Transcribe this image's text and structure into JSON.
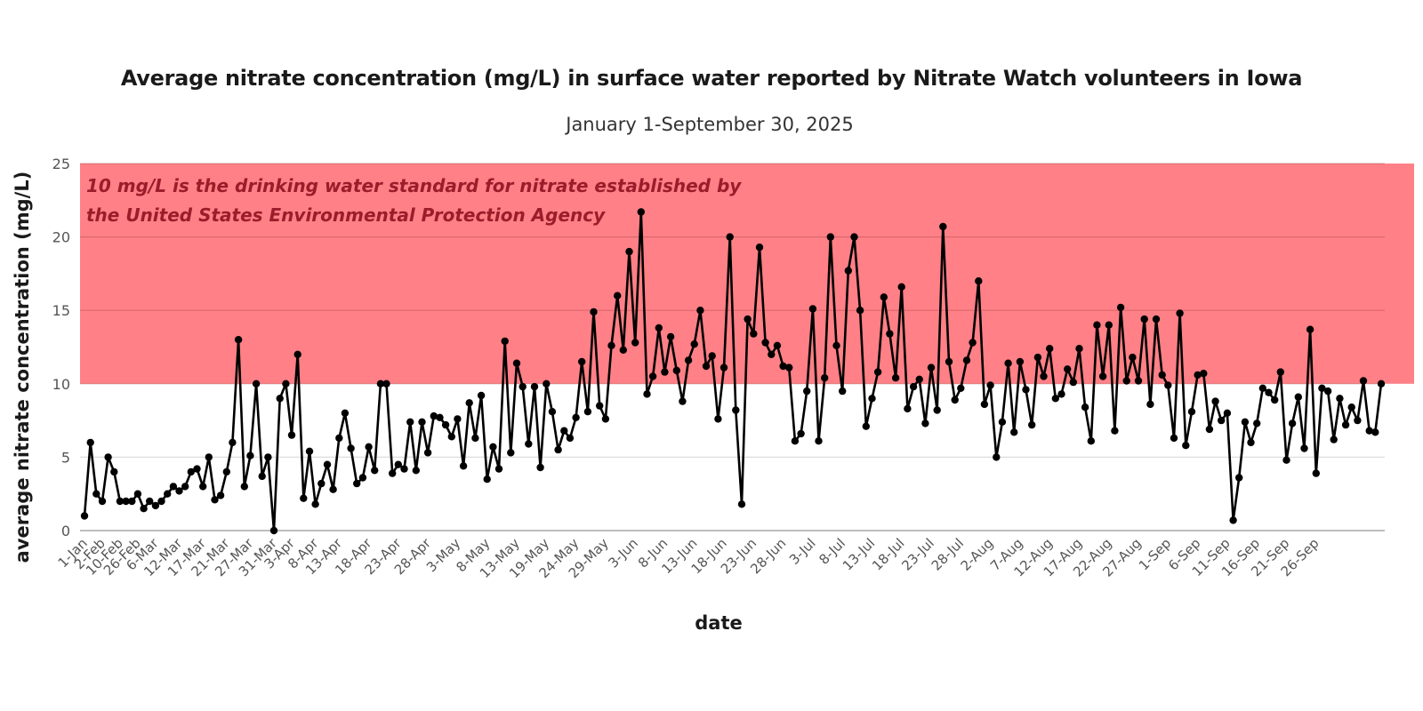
{
  "chart_data": {
    "type": "line",
    "title": "Average nitrate concentration (mg/L) in surface water reported by Nitrate Watch volunteers in Iowa",
    "subtitle": "January 1-September 30, 2025",
    "xlabel": "date",
    "ylabel": "average nitrate concentration (mg/L)",
    "ylim": [
      0,
      25
    ],
    "yticks": [
      0,
      5,
      10,
      15,
      20,
      25
    ],
    "grid": true,
    "legend": "none",
    "threshold_band": {
      "from": 10,
      "to": 25,
      "color": "#ff8086",
      "annotation_lines": [
        "10 mg/L is the drinking water standard for nitrate established by",
        "the United States Environmental Protection Agency"
      ],
      "annotation_color": "#9b1c2a"
    },
    "xtick_labels": [
      "1-Jan",
      "2-Feb",
      "10-Feb",
      "26-Feb",
      "6-Mar",
      "12-Mar",
      "17-Mar",
      "21-Mar",
      "27-Mar",
      "31-Mar",
      "3-Apr",
      "8-Apr",
      "13-Apr",
      "18-Apr",
      "23-Apr",
      "28-Apr",
      "3-May",
      "8-May",
      "13-May",
      "19-May",
      "24-May",
      "29-May",
      "3-Jun",
      "8-Jun",
      "13-Jun",
      "18-Jun",
      "23-Jun",
      "28-Jun",
      "3-Jul",
      "8-Jul",
      "13-Jul",
      "18-Jul",
      "23-Jul",
      "28-Jul",
      "2-Aug",
      "7-Aug",
      "12-Aug",
      "17-Aug",
      "22-Aug",
      "27-Aug",
      "1-Sep",
      "6-Sep",
      "11-Sep",
      "16-Sep",
      "21-Sep",
      "26-Sep"
    ],
    "xtick_positions": [
      0,
      3,
      6,
      9,
      12,
      16,
      20,
      24,
      28,
      32,
      35,
      39,
      43,
      48,
      53,
      58,
      63,
      68,
      73,
      78,
      83,
      88,
      93,
      98,
      103,
      108,
      113,
      118,
      123,
      128,
      133,
      138,
      143,
      148,
      153,
      158,
      163,
      168,
      173,
      178,
      183,
      188,
      193,
      198,
      203,
      208
    ],
    "series": [
      {
        "name": "average nitrate concentration",
        "color": "#000000",
        "values": [
          1.0,
          6.0,
          2.5,
          2.0,
          5.0,
          4.0,
          2.0,
          2.0,
          2.0,
          2.5,
          1.5,
          2.0,
          1.7,
          2.0,
          2.5,
          3.0,
          2.7,
          3.0,
          4.0,
          4.2,
          3.0,
          5.0,
          2.1,
          2.4,
          4.0,
          6.0,
          13.0,
          3.0,
          5.1,
          10.0,
          3.7,
          5.0,
          0.0,
          9.0,
          10.0,
          6.5,
          12.0,
          2.2,
          5.4,
          1.8,
          3.2,
          4.5,
          2.8,
          6.3,
          8.0,
          5.6,
          3.2,
          3.6,
          5.7,
          4.1,
          10.0,
          10.0,
          3.9,
          4.5,
          4.2,
          7.4,
          4.1,
          7.4,
          5.3,
          7.8,
          7.7,
          7.2,
          6.4,
          7.6,
          4.4,
          8.7,
          6.3,
          9.2,
          3.5,
          5.7,
          4.2,
          12.9,
          5.3,
          11.4,
          9.8,
          5.9,
          9.8,
          4.3,
          10.0,
          8.1,
          5.5,
          6.8,
          6.3,
          7.7,
          11.5,
          8.1,
          14.9,
          8.5,
          7.6,
          12.6,
          16.0,
          12.3,
          19.0,
          12.8,
          21.7,
          9.3,
          10.5,
          13.8,
          10.8,
          13.2,
          10.9,
          8.8,
          11.6,
          12.7,
          15.0,
          11.2,
          11.9,
          7.6,
          11.1,
          20.0,
          8.2,
          1.8,
          14.4,
          13.4,
          19.3,
          12.8,
          12.0,
          12.6,
          11.2,
          11.1,
          6.1,
          6.6,
          9.5,
          15.1,
          6.1,
          10.4,
          20.0,
          12.6,
          9.5,
          17.7,
          20.0,
          15.0,
          7.1,
          9.0,
          10.8,
          15.9,
          13.4,
          10.4,
          16.6,
          8.3,
          9.8,
          10.3,
          7.3,
          11.1,
          8.2,
          20.7,
          11.5,
          8.9,
          9.7,
          11.6,
          12.8,
          17.0,
          8.6,
          9.9,
          5.0,
          7.4,
          11.4,
          6.7,
          11.5,
          9.6,
          7.2,
          11.8,
          10.5,
          12.4,
          9.0,
          9.3,
          11.0,
          10.1,
          12.4,
          8.4,
          6.1,
          14.0,
          10.5,
          14.0,
          6.8,
          15.2,
          10.2,
          11.8,
          10.2,
          14.4,
          8.6,
          14.4,
          10.6,
          9.9,
          6.3,
          14.8,
          5.8,
          8.1,
          10.6,
          10.7,
          6.9,
          8.8,
          7.5,
          8.0,
          0.7,
          3.6,
          7.4,
          6.0,
          7.3,
          9.7,
          9.4,
          8.9,
          10.8,
          4.8,
          7.3,
          9.1,
          5.6,
          13.7,
          3.9,
          9.7,
          9.5,
          6.2,
          9.0,
          7.2,
          8.4,
          7.5,
          10.2,
          6.8,
          6.7,
          10.0
        ]
      }
    ]
  }
}
